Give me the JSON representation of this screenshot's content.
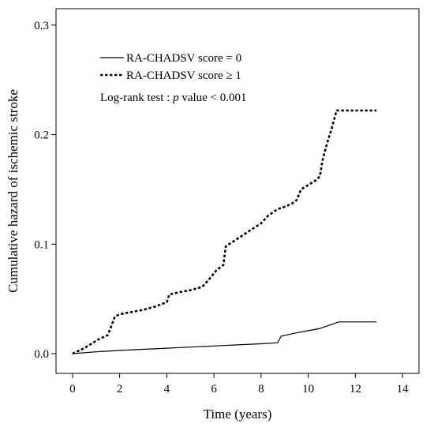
{
  "chart_data": {
    "type": "line",
    "title": "",
    "xlabel": "Time (years)",
    "ylabel": "Cumulative hazard of ischemic stroke",
    "xlim": [
      -0.7,
      14.7
    ],
    "ylim": [
      -0.018,
      0.315
    ],
    "x_ticks": [
      0,
      2,
      4,
      6,
      8,
      10,
      12,
      14
    ],
    "x_tick_labels": [
      "0",
      "2",
      "4",
      "6",
      "8",
      "10",
      "12",
      "14"
    ],
    "y_ticks": [
      0.0,
      0.1,
      0.2,
      0.3
    ],
    "y_tick_labels": [
      "0.0",
      "0.1",
      "0.2",
      "0.3"
    ],
    "grid": false,
    "legend_position": "top-left",
    "annotation": {
      "prefix": "Log-rank test : ",
      "italic": "p",
      "suffix": " value < 0.001"
    },
    "series": [
      {
        "name": "RA-CHADSV score = 0",
        "style": "solid",
        "color": "#000000",
        "x": [
          0,
          1,
          2,
          3,
          4,
          5,
          6,
          7,
          8,
          8.7,
          8.85,
          9.5,
          10,
          10.5,
          11.3,
          12.9
        ],
        "y": [
          0,
          0.0017,
          0.003,
          0.004,
          0.005,
          0.006,
          0.007,
          0.008,
          0.009,
          0.01,
          0.016,
          0.019,
          0.021,
          0.023,
          0.029,
          0.029
        ]
      },
      {
        "name": "RA-CHADSV score ≥ 1",
        "style": "dotted",
        "color": "#000000",
        "x": [
          0,
          0.5,
          0.8,
          1.1,
          1.5,
          1.8,
          2.0,
          2.5,
          3.0,
          3.5,
          4.0,
          4.1,
          4.5,
          5.0,
          5.5,
          5.8,
          6.1,
          6.4,
          6.5,
          7.0,
          7.5,
          8.0,
          8.3,
          8.7,
          9.0,
          9.3,
          9.5,
          9.7,
          10.0,
          10.3,
          10.5,
          10.6,
          10.8,
          11.0,
          11.2,
          12.9
        ],
        "y": [
          0,
          0.005,
          0.009,
          0.013,
          0.017,
          0.034,
          0.036,
          0.038,
          0.04,
          0.043,
          0.047,
          0.054,
          0.056,
          0.058,
          0.061,
          0.068,
          0.076,
          0.081,
          0.098,
          0.105,
          0.112,
          0.119,
          0.126,
          0.132,
          0.134,
          0.137,
          0.14,
          0.15,
          0.154,
          0.158,
          0.162,
          0.176,
          0.192,
          0.206,
          0.222,
          0.222
        ]
      }
    ]
  }
}
